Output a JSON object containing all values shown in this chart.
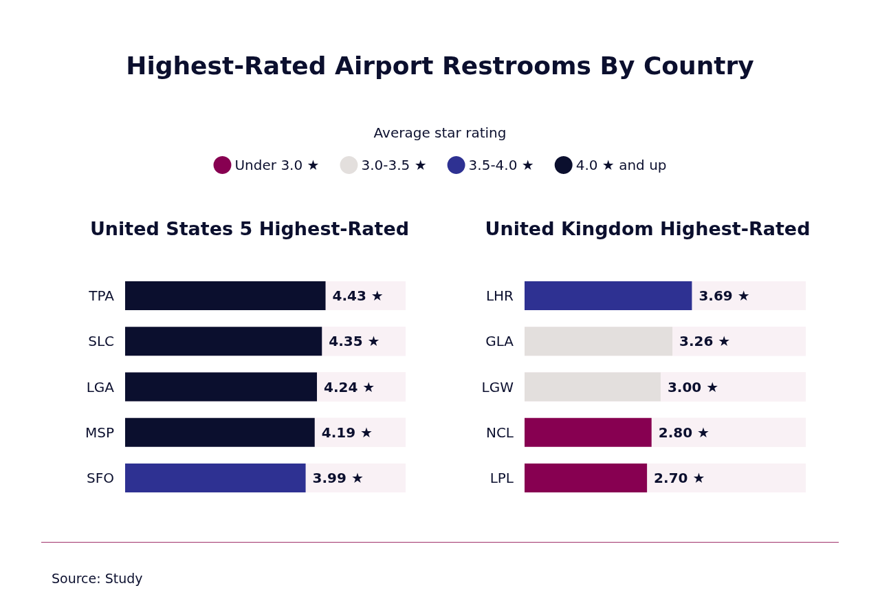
{
  "chart_data": [
    {
      "type": "bar",
      "orientation": "horizontal",
      "stacked": true,
      "title": "Highest-Rated Airport Restrooms By Country",
      "subtitle": "United States 5 Highest-Rated",
      "legend_title": "Average star rating",
      "legend": "top",
      "tick_labels": "y",
      "xlim": [
        0,
        6.2
      ],
      "categories": [
        "TPA",
        "SLC",
        "LGA",
        "MSP",
        "SFO"
      ],
      "series": [
        {
          "name": "Under 3.0 ★",
          "color": "#870051",
          "values": [
            null,
            null,
            null,
            null,
            null
          ],
          "value_labels": [
            null,
            null,
            null,
            null,
            null
          ]
        },
        {
          "name": "3.0-3.5 ★",
          "color": "#e3dfdd",
          "values": [
            null,
            null,
            null,
            null,
            null
          ],
          "value_labels": [
            null,
            null,
            null,
            null,
            null
          ]
        },
        {
          "name": "3.5-4.0 ★",
          "color": "#2e3192",
          "values": [
            null,
            null,
            null,
            null,
            3.99
          ],
          "value_labels": [
            null,
            null,
            null,
            null,
            "3.99 ★"
          ]
        },
        {
          "name": "4.0 ★ and up",
          "color": "#0b0f2e",
          "values": [
            4.43,
            4.35,
            4.24,
            4.19,
            null
          ],
          "value_labels": [
            "4.43 ★",
            "4.35 ★",
            "4.24 ★",
            "4.19 ★",
            null
          ]
        }
      ],
      "annotations": [
        "Source: Study"
      ]
    },
    {
      "type": "bar",
      "orientation": "horizontal",
      "stacked": true,
      "title": "United Kingdom Highest-Rated",
      "tick_labels": "y",
      "xlim": [
        0,
        6.2
      ],
      "categories": [
        "LHR",
        "GLA",
        "LGW",
        "NCL",
        "LPL"
      ],
      "series": [
        {
          "color": "#870051",
          "values": [
            null,
            null,
            null,
            2.8,
            2.7
          ],
          "value_labels": [
            null,
            null,
            null,
            "2.80 ★",
            "2.70 ★"
          ]
        },
        {
          "color": "#e3dfdd",
          "values": [
            null,
            3.26,
            3.0,
            null,
            null
          ],
          "value_labels": [
            null,
            "3.26 ★",
            "3.00 ★",
            null,
            null
          ]
        },
        {
          "color": "#2e3192",
          "values": [
            3.69,
            null,
            null,
            null,
            null
          ],
          "value_labels": [
            "3.69 ★",
            null,
            null,
            null,
            null
          ]
        },
        {
          "color": "#0b0f2e",
          "values": [
            null,
            null,
            null,
            null,
            null
          ],
          "value_labels": [
            null,
            null,
            null,
            null,
            null
          ]
        }
      ]
    }
  ]
}
